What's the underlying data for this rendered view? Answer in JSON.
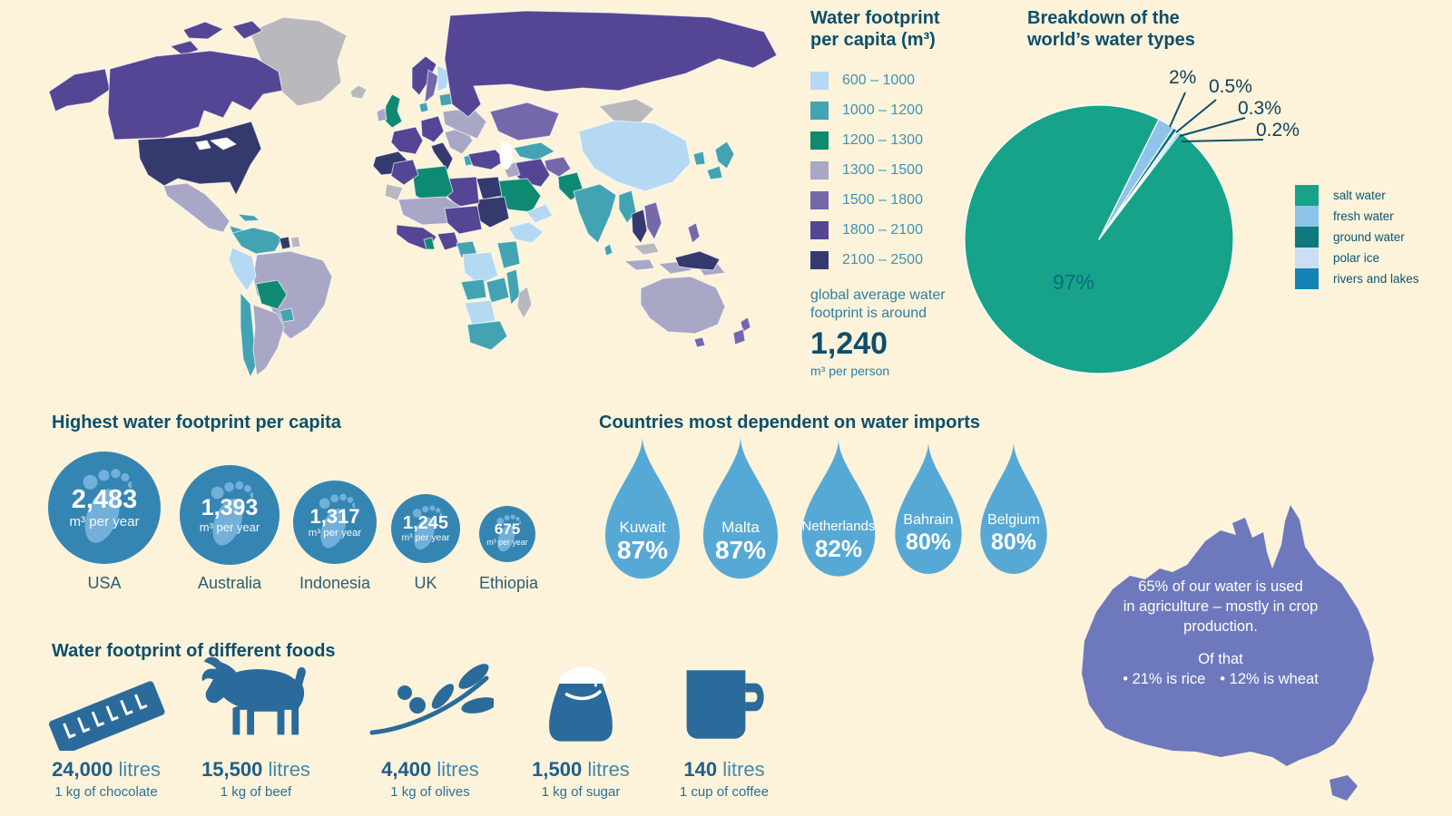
{
  "background": "#fcf3da",
  "map_section": {
    "legend_title_line1": "Water footprint",
    "legend_title_line2": "per capita (m³)",
    "legend": [
      {
        "label": "600 – 1000",
        "color": "#b5d9f2"
      },
      {
        "label": "1000 – 1200",
        "color": "#43a3b2"
      },
      {
        "label": "1200 – 1300",
        "color": "#0f8a72"
      },
      {
        "label": "1300 – 1500",
        "color": "#a9a7c6"
      },
      {
        "label": "1500 – 1800",
        "color": "#7468ab"
      },
      {
        "label": "1800 – 2100",
        "color": "#544595"
      },
      {
        "label": "2100 – 2500",
        "color": "#343a6e"
      }
    ],
    "no_data_color": "#b9b9bd",
    "water_color": "#ffffff",
    "note_line1": "global average water",
    "note_line2": "footprint is around",
    "average_value": "1,240",
    "average_unit": "m³ per person"
  },
  "pie_section": {
    "title_line1": "Breakdown of the",
    "title_line2": "world’s water types",
    "inside_label": "97%"
  },
  "footprints": {
    "title": "Highest water footprint per capita",
    "unit": "m³ per year",
    "circle_color": "#3585b2",
    "print_color": "#82bbe4",
    "items": [
      {
        "country": "USA",
        "value": "2,483"
      },
      {
        "country": "Australia",
        "value": "1,393"
      },
      {
        "country": "Indonesia",
        "value": "1,317"
      },
      {
        "country": "UK",
        "value": "1,245"
      },
      {
        "country": "Ethiopia",
        "value": "675"
      }
    ]
  },
  "imports": {
    "title": "Countries most dependent on water imports",
    "drop_color": "#57a9d5",
    "items": [
      {
        "country": "Kuwait",
        "value": "87%"
      },
      {
        "country": "Malta",
        "value": "87%"
      },
      {
        "country": "Netherlands",
        "value": "82%"
      },
      {
        "country": "Bahrain",
        "value": "80%"
      },
      {
        "country": "Belgium",
        "value": "80%"
      }
    ]
  },
  "australia_fact": {
    "fill": "#6e79bd",
    "line1": "65% of our water is used",
    "line2": "in agriculture – mostly in crop",
    "line3": "production.",
    "line4": "Of that",
    "bullet1": "• 21% is rice",
    "bullet2": "• 12% is wheat"
  },
  "foods": {
    "title": "Water footprint of different foods",
    "icon_color": "#2a6b9b",
    "highlight_color": "#ffffff",
    "items": [
      {
        "icon": "chocolate-bar-icon",
        "value": "24,000",
        "unit": "litres",
        "per": "1 kg of chocolate"
      },
      {
        "icon": "cow-icon",
        "value": "15,500",
        "unit": "litres",
        "per": "1 kg of beef"
      },
      {
        "icon": "olive-branch-icon",
        "value": "4,400",
        "unit": "litres",
        "per": "1 kg of olives"
      },
      {
        "icon": "sugar-sack-icon",
        "value": "1,500",
        "unit": "litres",
        "per": "1 kg of sugar"
      },
      {
        "icon": "coffee-mug-icon",
        "value": "140",
        "unit": "litres",
        "per": "1 cup of coffee"
      }
    ]
  },
  "chart_data": [
    {
      "type": "pie",
      "title": "Breakdown of the world’s water types",
      "labels": [
        "salt water",
        "fresh water",
        "ground water",
        "polar ice",
        "rivers and lakes"
      ],
      "values": [
        97,
        2,
        0.5,
        0.3,
        0.2
      ],
      "unit": "%",
      "colors": [
        "#16a38a",
        "#8fc4ea",
        "#0f7a7d",
        "#cadff2",
        "#1583b5"
      ],
      "callouts": [
        "2%",
        "0.5%",
        "0.3%",
        "0.2%"
      ],
      "inside_label": "97%",
      "legend_position": "right",
      "start_angle_deg": 26.5
    },
    {
      "type": "proportional_circles",
      "title": "Highest water footprint per capita",
      "categories": [
        "USA",
        "Australia",
        "Indonesia",
        "UK",
        "Ethiopia"
      ],
      "values": [
        2483,
        1393,
        1317,
        1245,
        675
      ],
      "unit": "m³ per year"
    },
    {
      "type": "pictogram_droplets",
      "title": "Countries most dependent on water imports",
      "categories": [
        "Kuwait",
        "Malta",
        "Netherlands",
        "Bahrain",
        "Belgium"
      ],
      "values": [
        87,
        87,
        82,
        80,
        80
      ],
      "unit": "%"
    },
    {
      "type": "pictogram_foods",
      "title": "Water footprint of different foods",
      "categories": [
        "1 kg of chocolate",
        "1 kg of beef",
        "1 kg of olives",
        "1 kg of sugar",
        "1 cup of coffee"
      ],
      "values": [
        24000,
        15500,
        4400,
        1500,
        140
      ],
      "unit": "litres"
    },
    {
      "type": "choropleth_map",
      "title": "Water footprint per capita (m³)",
      "bins": [
        "600 – 1000",
        "1000 – 1200",
        "1200 – 1300",
        "1300 – 1500",
        "1500 – 1800",
        "1800 – 2100",
        "2100 – 2500"
      ],
      "bin_colors": [
        "#b5d9f2",
        "#43a3b2",
        "#0f8a72",
        "#a9a7c6",
        "#7468ab",
        "#544595",
        "#343a6e"
      ],
      "no_data_color": "#b9b9bd",
      "annotation": "global average water footprint is around 1,240 m³ per person"
    }
  ]
}
